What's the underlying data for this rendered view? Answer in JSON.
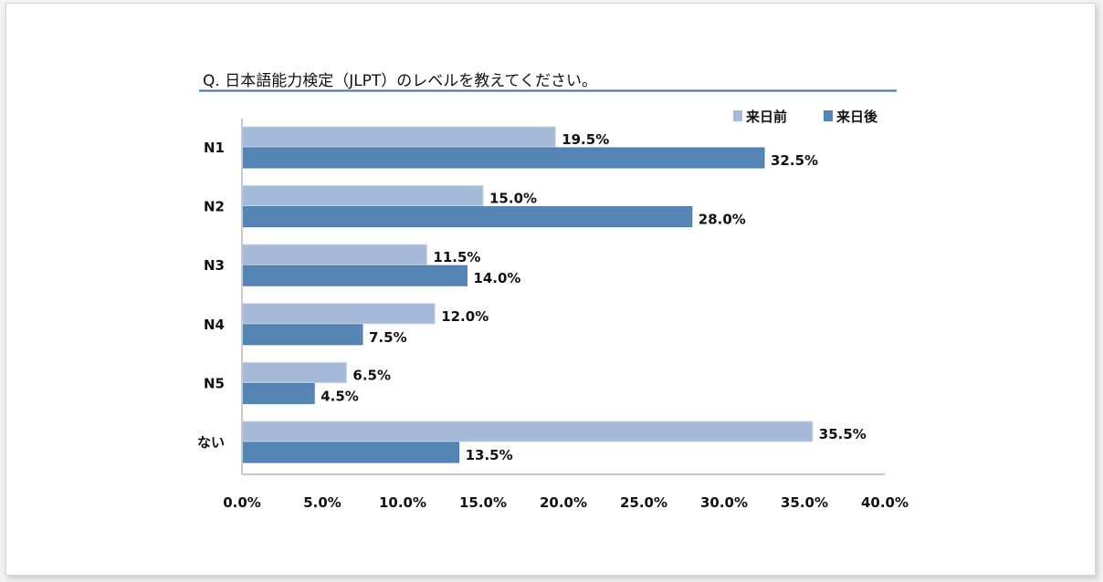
{
  "chart_data": {
    "type": "bar",
    "orientation": "horizontal",
    "title": "Q. 日本語能力検定（JLPT）のレベルを教えてください。",
    "categories": [
      "N1",
      "N2",
      "N3",
      "N4",
      "N5",
      "ない"
    ],
    "series": [
      {
        "name": "来日前",
        "color": "#a5b9d9",
        "values": [
          19.5,
          15.0,
          11.5,
          12.0,
          6.5,
          35.5
        ]
      },
      {
        "name": "来日後",
        "color": "#5585b5",
        "values": [
          32.5,
          28.0,
          14.0,
          7.5,
          4.5,
          13.5
        ]
      }
    ],
    "xlim": [
      0,
      40
    ],
    "xticks": [
      "0.0%",
      "5.0%",
      "10.0%",
      "15.0%",
      "20.0%",
      "25.0%",
      "30.0%",
      "35.0%",
      "40.0%"
    ],
    "data_labels": [
      [
        "19.5%",
        "15.0%",
        "11.5%",
        "12.0%",
        "6.5%",
        "35.5%"
      ],
      [
        "32.5%",
        "28.0%",
        "14.0%",
        "7.5%",
        "4.5%",
        "13.5%"
      ]
    ],
    "legend_position": "top-right",
    "grid": false
  }
}
